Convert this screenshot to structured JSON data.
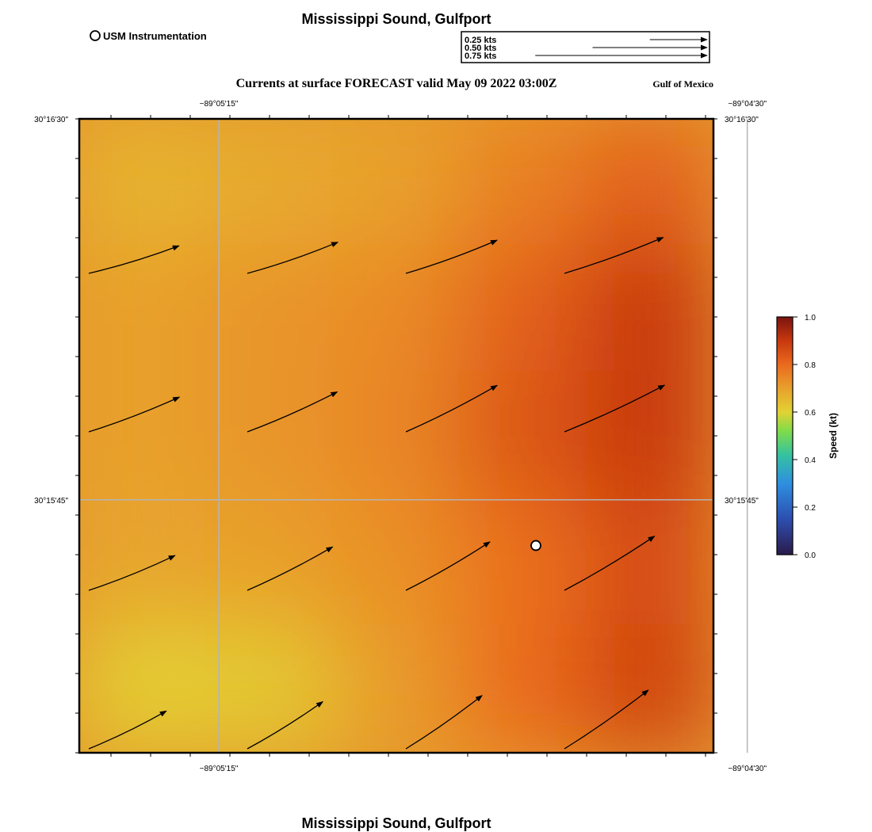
{
  "header": {
    "title": "Mississippi Sound, Gulfport",
    "footer_title": "Mississippi Sound, Gulfport",
    "subtitle": "Currents at surface FORECAST valid May 09 2022 03:00Z",
    "region": "Gulf of Mexico"
  },
  "legend": {
    "marker_label": "USM Instrumentation",
    "vector_keys": [
      {
        "label": "0.25 kts",
        "speed": 0.25
      },
      {
        "label": "0.50 kts",
        "speed": 0.5
      },
      {
        "label": "0.75 kts",
        "speed": 0.75
      }
    ]
  },
  "chart_data": {
    "type": "heatmap",
    "title": "Currents at surface FORECAST valid May 09 2022 03:00Z",
    "variable": "Speed (kt)",
    "lon_range_deg": [
      -89.0908,
      -89.0758
    ],
    "lat_range_deg": [
      30.2542,
      30.275
    ],
    "x_ticks": [
      {
        "label": "−89°05'15\"",
        "value": -89.0875
      },
      {
        "label": "−89°04'30\"",
        "value": -89.075
      }
    ],
    "y_ticks": [
      {
        "label": "30°16'30\"",
        "value": 30.275
      },
      {
        "label": "30°15'45\"",
        "value": 30.2625
      }
    ],
    "colorbar": {
      "label": "Speed (kt)",
      "range": [
        0.0,
        1.0
      ],
      "ticks": [
        {
          "label": "0.0",
          "value": 0.0
        },
        {
          "label": "0.2",
          "value": 0.2
        },
        {
          "label": "0.4",
          "value": 0.4
        },
        {
          "label": "0.6",
          "value": 0.6
        },
        {
          "label": "0.8",
          "value": 0.8
        },
        {
          "label": "1.0",
          "value": 1.0
        }
      ]
    },
    "speed_field_grid": {
      "cols": 5,
      "rows": 5,
      "values": [
        [
          0.66,
          0.68,
          0.7,
          0.76,
          0.82
        ],
        [
          0.7,
          0.72,
          0.74,
          0.82,
          0.9
        ],
        [
          0.7,
          0.72,
          0.75,
          0.84,
          0.9
        ],
        [
          0.69,
          0.7,
          0.73,
          0.79,
          0.86
        ],
        [
          0.61,
          0.62,
          0.71,
          0.8,
          0.88
        ]
      ]
    },
    "vectors": [
      {
        "row": 0,
        "col": 0,
        "speed": 0.7,
        "angle_deg": 17
      },
      {
        "row": 0,
        "col": 1,
        "speed": 0.71,
        "angle_deg": 19
      },
      {
        "row": 0,
        "col": 2,
        "speed": 0.72,
        "angle_deg": 20
      },
      {
        "row": 0,
        "col": 3,
        "speed": 0.78,
        "angle_deg": 20
      },
      {
        "row": 1,
        "col": 0,
        "speed": 0.72,
        "angle_deg": 21
      },
      {
        "row": 1,
        "col": 1,
        "speed": 0.73,
        "angle_deg": 24
      },
      {
        "row": 1,
        "col": 2,
        "speed": 0.76,
        "angle_deg": 27
      },
      {
        "row": 1,
        "col": 3,
        "speed": 0.82,
        "angle_deg": 25
      },
      {
        "row": 2,
        "col": 0,
        "speed": 0.69,
        "angle_deg": 22
      },
      {
        "row": 2,
        "col": 1,
        "speed": 0.71,
        "angle_deg": 27
      },
      {
        "row": 2,
        "col": 2,
        "speed": 0.72,
        "angle_deg": 30
      },
      {
        "row": 2,
        "col": 3,
        "speed": 0.78,
        "angle_deg": 31
      },
      {
        "row": 3,
        "col": 0,
        "speed": 0.64,
        "angle_deg": 26
      },
      {
        "row": 3,
        "col": 1,
        "speed": 0.66,
        "angle_deg": 32
      },
      {
        "row": 3,
        "col": 2,
        "speed": 0.69,
        "angle_deg": 35
      },
      {
        "row": 3,
        "col": 3,
        "speed": 0.76,
        "angle_deg": 35
      }
    ],
    "stations": [
      {
        "name": "USM Instrumentation",
        "lon": -89.08,
        "lat": 30.261
      }
    ]
  }
}
